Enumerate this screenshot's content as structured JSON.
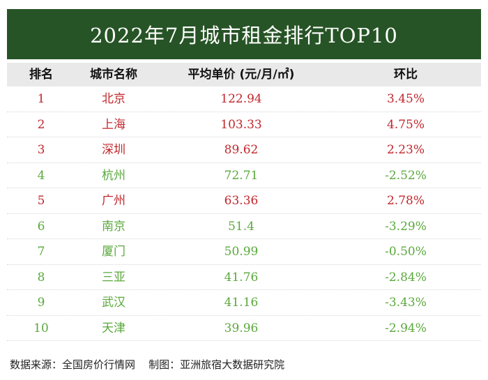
{
  "title": "2022年7月城市租金排行TOP10",
  "colors": {
    "title_bg": "#275426",
    "header_bg": "#e9e9e9",
    "up": "#c0272d",
    "down": "#5aa83c"
  },
  "table_header": {
    "rank": "排名",
    "city": "城市名称",
    "price": "平均单价 (元/月/㎡)",
    "ratio": "环比"
  },
  "chart_data": {
    "type": "table",
    "title": "2022年7月城市租金排行TOP10",
    "columns": [
      "排名",
      "城市名称",
      "平均单价 (元/月/㎡)",
      "环比"
    ],
    "rows": [
      {
        "rank": "1",
        "city": "北京",
        "price": "122.94",
        "ratio": "3.45%",
        "trend": "up"
      },
      {
        "rank": "2",
        "city": "上海",
        "price": "103.33",
        "ratio": "4.75%",
        "trend": "up"
      },
      {
        "rank": "3",
        "city": "深圳",
        "price": "89.62",
        "ratio": "2.23%",
        "trend": "up"
      },
      {
        "rank": "4",
        "city": "杭州",
        "price": "72.71",
        "ratio": "-2.52%",
        "trend": "down"
      },
      {
        "rank": "5",
        "city": "广州",
        "price": "63.36",
        "ratio": "2.78%",
        "trend": "up"
      },
      {
        "rank": "6",
        "city": "南京",
        "price": "51.4",
        "ratio": "-3.29%",
        "trend": "down"
      },
      {
        "rank": "7",
        "city": "厦门",
        "price": "50.99",
        "ratio": "-0.50%",
        "trend": "down"
      },
      {
        "rank": "8",
        "city": "三亚",
        "price": "41.76",
        "ratio": "-2.84%",
        "trend": "down"
      },
      {
        "rank": "9",
        "city": "武汉",
        "price": "41.16",
        "ratio": "-3.43%",
        "trend": "down"
      },
      {
        "rank": "10",
        "city": "天津",
        "price": "39.96",
        "ratio": "-2.94%",
        "trend": "down"
      }
    ]
  },
  "footer": {
    "source": "数据来源：全国房价行情网",
    "credit": "制图：亚洲旅宿大数据研究院"
  }
}
